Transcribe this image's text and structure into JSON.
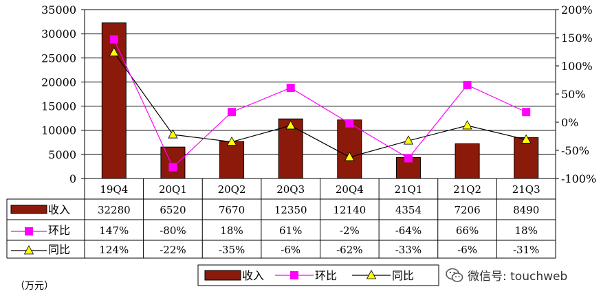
{
  "chart_data": {
    "type": "bar",
    "categories": [
      "19Q4",
      "20Q1",
      "20Q2",
      "20Q3",
      "20Q4",
      "21Q1",
      "21Q2",
      "21Q3"
    ],
    "series": [
      {
        "name": "收入",
        "kind": "bar",
        "axis": "left",
        "color": "#8B1A0A",
        "values": [
          32280,
          6520,
          7670,
          12350,
          12140,
          4354,
          7206,
          8490
        ],
        "labels": [
          "32280",
          "6520",
          "7670",
          "12350",
          "12140",
          "4354",
          "7206",
          "8490"
        ]
      },
      {
        "name": "环比",
        "kind": "line",
        "axis": "right",
        "color": "#FF00FF",
        "marker": "square",
        "values": [
          147,
          -80,
          18,
          61,
          -2,
          -64,
          66,
          18
        ],
        "labels": [
          "147%",
          "-80%",
          "18%",
          "61%",
          "-2%",
          "-64%",
          "66%",
          "18%"
        ]
      },
      {
        "name": "同比",
        "kind": "line",
        "axis": "right",
        "color": "#000000",
        "marker": "triangle",
        "marker_color": "#FFFF00",
        "values": [
          124,
          -22,
          -35,
          -6,
          -62,
          -33,
          -6,
          -31
        ],
        "labels": [
          "124%",
          "-22%",
          "-35%",
          "-6%",
          "-62%",
          "-33%",
          "-6%",
          "-31%"
        ]
      }
    ],
    "left_axis": {
      "ylim": [
        0,
        35000
      ],
      "ticks": [
        "0",
        "5000",
        "10000",
        "15000",
        "20000",
        "25000",
        "30000",
        "35000"
      ]
    },
    "right_axis": {
      "ylim": [
        -100,
        200
      ],
      "ticks": [
        "-100%",
        "-50%",
        "0%",
        "50%",
        "100%",
        "150%",
        "200%"
      ]
    },
    "grid": true,
    "legend": {
      "placement": "bottom",
      "items": [
        "收入",
        "环比",
        "同比"
      ]
    },
    "unit_label": "（万元）"
  },
  "watermark": {
    "text": "微信号: touchweb"
  }
}
